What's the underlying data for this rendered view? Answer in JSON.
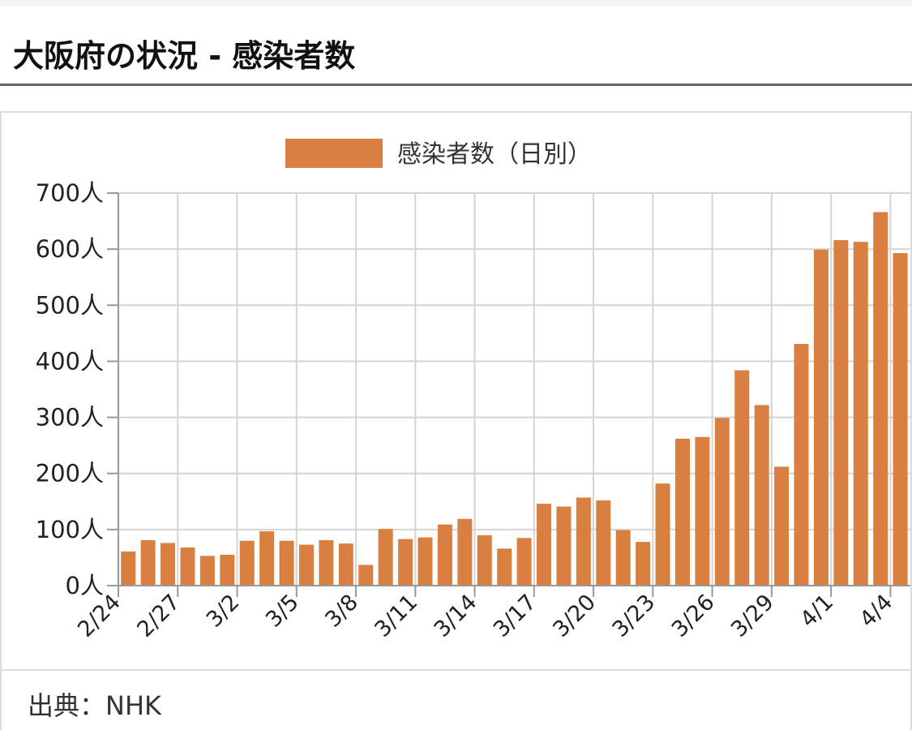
{
  "heading": "大阪府の状況 - 感染者数",
  "source": "出典：NHK",
  "chart_data": {
    "type": "bar",
    "legend": [
      "感染者数（日別）"
    ],
    "bar_color": "#d98040",
    "ylim": [
      0,
      700
    ],
    "y_unit": "人",
    "yticks": [
      {
        "value": 0,
        "label": "0人"
      },
      {
        "value": 100,
        "label": "100人"
      },
      {
        "value": 200,
        "label": "200人"
      },
      {
        "value": 300,
        "label": "300人"
      },
      {
        "value": 400,
        "label": "400人"
      },
      {
        "value": 500,
        "label": "500人"
      },
      {
        "value": 600,
        "label": "600人"
      },
      {
        "value": 700,
        "label": "700人"
      }
    ],
    "xtick_labels": [
      "2/24",
      "2/27",
      "3/2",
      "3/5",
      "3/8",
      "3/11",
      "3/14",
      "3/17",
      "3/20",
      "3/23",
      "3/26",
      "3/29",
      "4/1",
      "4/4"
    ],
    "categories": [
      "2/24",
      "2/25",
      "2/26",
      "2/27",
      "2/28",
      "3/1",
      "3/2",
      "3/3",
      "3/4",
      "3/5",
      "3/6",
      "3/7",
      "3/8",
      "3/9",
      "3/10",
      "3/11",
      "3/12",
      "3/13",
      "3/14",
      "3/15",
      "3/16",
      "3/17",
      "3/18",
      "3/19",
      "3/20",
      "3/21",
      "3/22",
      "3/23",
      "3/24",
      "3/25",
      "3/26",
      "3/27",
      "3/28",
      "3/29",
      "3/30",
      "3/31",
      "4/1",
      "4/2",
      "4/3",
      "4/4"
    ],
    "values": [
      61,
      81,
      76,
      68,
      53,
      55,
      80,
      97,
      80,
      73,
      81,
      75,
      37,
      101,
      83,
      86,
      109,
      119,
      90,
      66,
      85,
      146,
      141,
      157,
      152,
      99,
      78,
      182,
      262,
      265,
      299,
      384,
      322,
      212,
      431,
      599,
      616,
      613,
      666,
      593
    ]
  }
}
